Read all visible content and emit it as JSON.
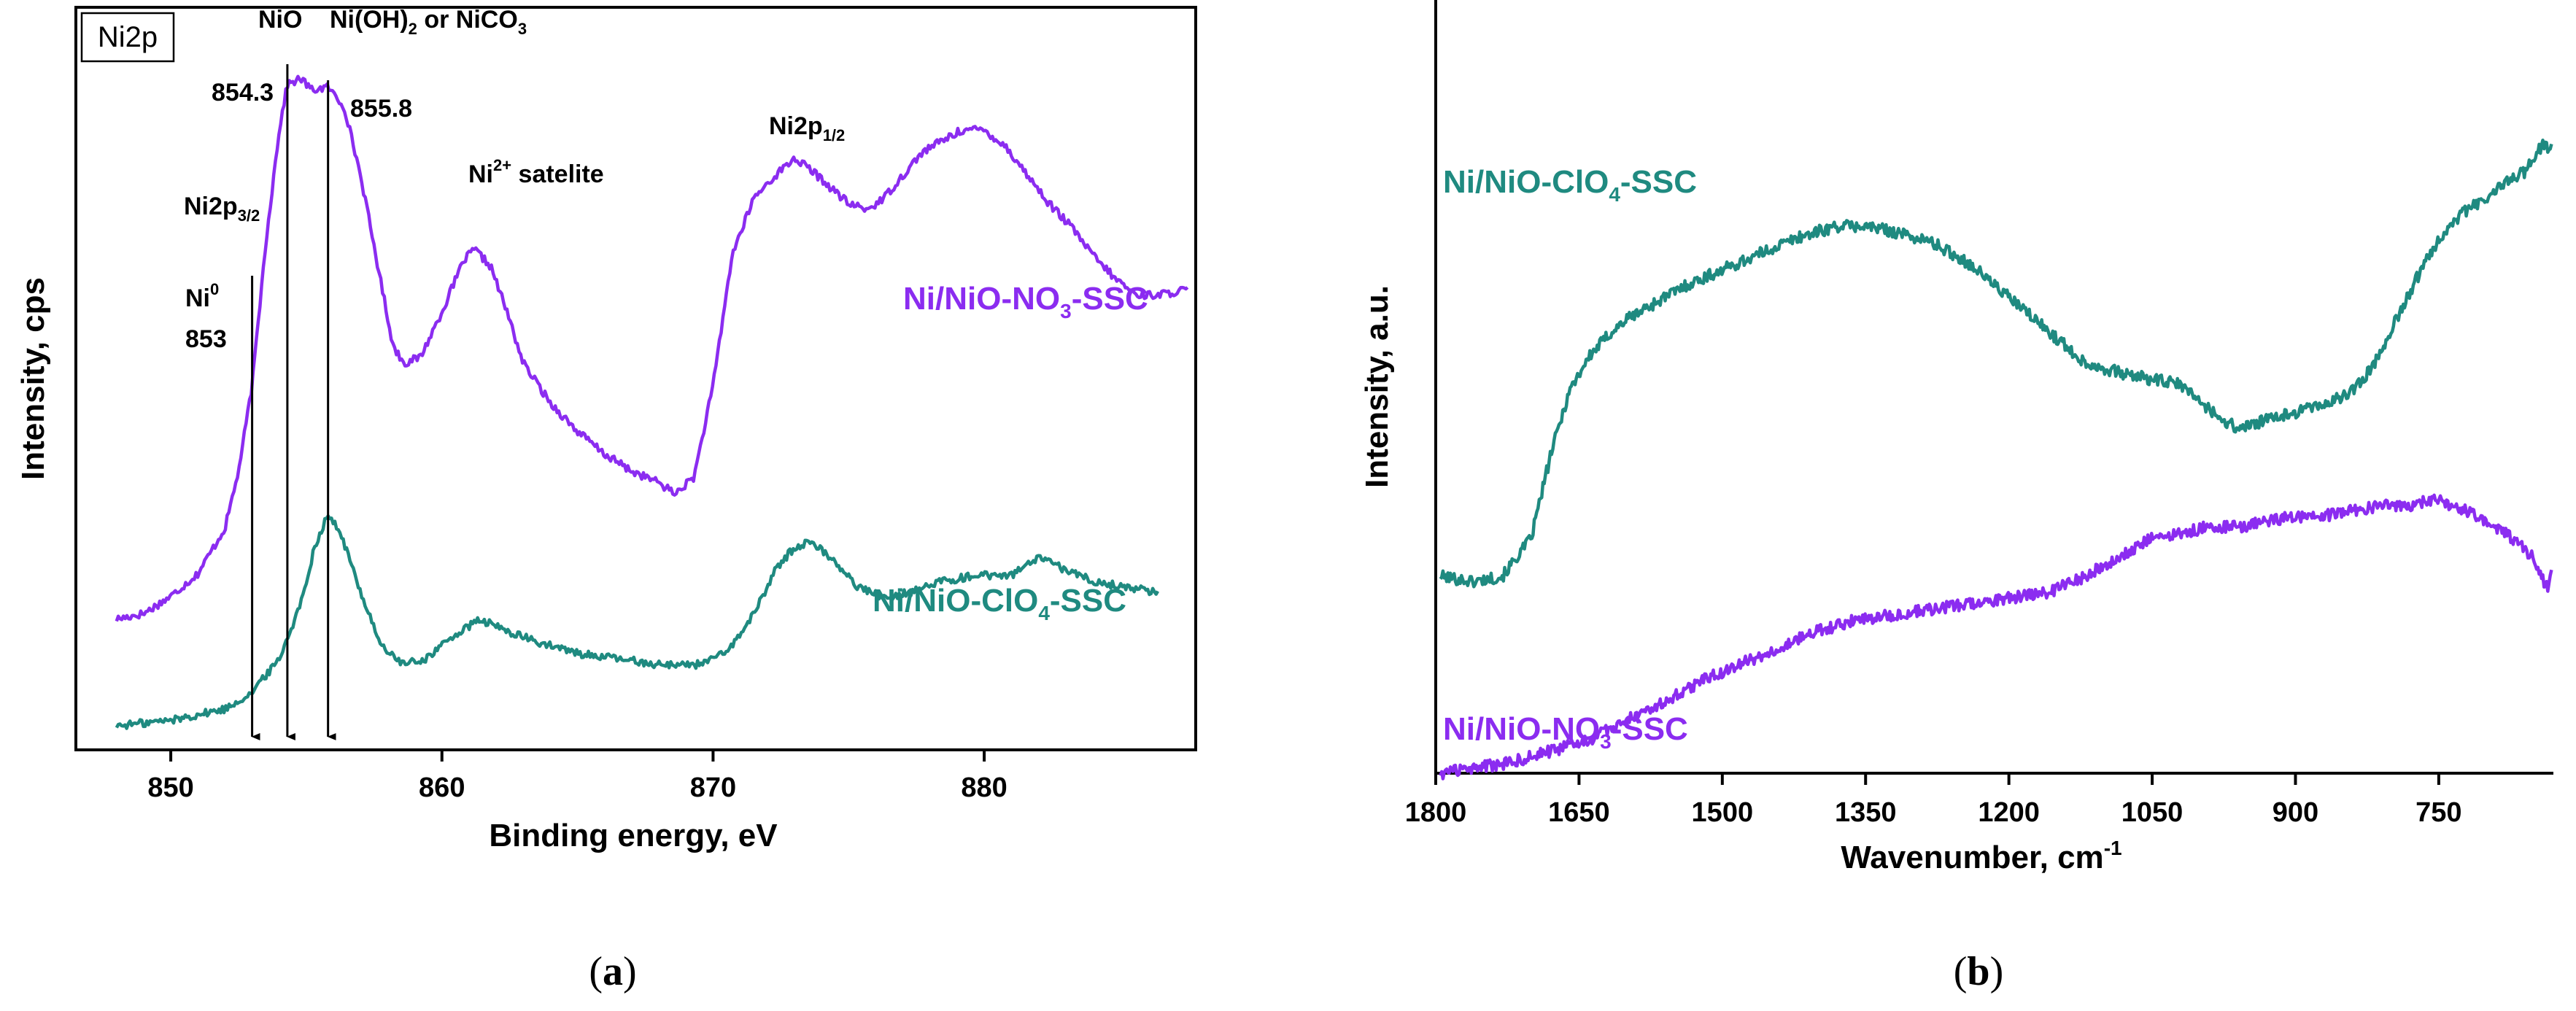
{
  "colors": {
    "purple": "#8b2cf0",
    "teal": "#1f8a80",
    "axis": "#000000"
  },
  "chart_data": [
    {
      "id": "a",
      "type": "line",
      "panel_caption": {
        "open": "(",
        "letter": "a",
        "close": ")"
      },
      "box_label": "Ni2p",
      "xlabel": "Binding energy, eV",
      "ylabel": "Intensity, cps",
      "xlim": [
        846.5,
        887.8
      ],
      "xticks": [
        850,
        860,
        870,
        880
      ],
      "xtick_labels": [
        "850",
        "860",
        "870",
        "880"
      ],
      "y_ticks_shown": false,
      "series": [
        {
          "name": "Ni/NiO-NO3-SSC",
          "label_main": "Ni/NiO-NO",
          "label_sub": "3",
          "label_end": "-SSC",
          "color": "#8b2cf0",
          "x": [
            848,
            849,
            850,
            851,
            852,
            852.5,
            853,
            853.5,
            854,
            854.3,
            854.8,
            855.2,
            855.8,
            856.4,
            857,
            857.6,
            858.2,
            858.6,
            859.2,
            860,
            860.8,
            861.2,
            861.8,
            862.4,
            863,
            864,
            865,
            866,
            867,
            868,
            868.6,
            869.3,
            870,
            870.7,
            871.5,
            872.3,
            873,
            873.6,
            874.3,
            875,
            875.7,
            876.3,
            877,
            877.7,
            878.4,
            879.2,
            880,
            880.8,
            881.6,
            882.4,
            883.2,
            884,
            884.8,
            885.6,
            886.5,
            887.5
          ],
          "values": [
            0.04,
            0.05,
            0.08,
            0.12,
            0.2,
            0.3,
            0.45,
            0.7,
            0.9,
            0.98,
            0.99,
            0.97,
            0.975,
            0.94,
            0.82,
            0.67,
            0.52,
            0.49,
            0.5,
            0.58,
            0.67,
            0.69,
            0.66,
            0.58,
            0.49,
            0.42,
            0.37,
            0.33,
            0.3,
            0.28,
            0.26,
            0.29,
            0.45,
            0.68,
            0.78,
            0.82,
            0.85,
            0.83,
            0.8,
            0.77,
            0.76,
            0.78,
            0.82,
            0.86,
            0.88,
            0.9,
            0.9,
            0.87,
            0.82,
            0.77,
            0.73,
            0.68,
            0.64,
            0.61,
            0.61,
            0.62
          ]
        },
        {
          "name": "Ni/NiO-ClO4-SSC",
          "label_main": "Ni/NiO-ClO",
          "label_sub": "4",
          "label_end": "-SSC",
          "color": "#1f8a80",
          "x": [
            848,
            850,
            852,
            853,
            854,
            854.8,
            855.3,
            855.8,
            856.3,
            857,
            857.8,
            858.6,
            859.4,
            860.4,
            861.4,
            862.4,
            863.5,
            865,
            866.5,
            868,
            869.4,
            870.5,
            871.5,
            872.3,
            873,
            873.6,
            874.4,
            875.3,
            876.3,
            877.3,
            878.5,
            879.8,
            881,
            882,
            883,
            884,
            885,
            886.4
          ],
          "values": [
            0.0,
            0.01,
            0.03,
            0.06,
            0.12,
            0.22,
            0.32,
            0.38,
            0.34,
            0.24,
            0.14,
            0.11,
            0.12,
            0.16,
            0.19,
            0.17,
            0.15,
            0.13,
            0.12,
            0.11,
            0.11,
            0.13,
            0.2,
            0.28,
            0.32,
            0.33,
            0.3,
            0.25,
            0.23,
            0.24,
            0.26,
            0.27,
            0.27,
            0.3,
            0.28,
            0.26,
            0.25,
            0.24
          ]
        }
      ],
      "annotations": [
        {
          "id": "ni2p32",
          "main": "Ni2p",
          "sub": "3/2"
        },
        {
          "id": "nio",
          "main": "NiO"
        },
        {
          "id": "nio-be",
          "main": "854.3"
        },
        {
          "id": "nioh2",
          "main": "Ni(OH)",
          "sub1": "2",
          "mid": " or NiCO",
          "sub2": "3"
        },
        {
          "id": "nioh2-be",
          "main": "855.8"
        },
        {
          "id": "ni0",
          "main": "Ni",
          "sup": "0"
        },
        {
          "id": "ni0-be",
          "main": "853"
        },
        {
          "id": "sat",
          "main": "Ni",
          "sup": "2+",
          "end": " satelite"
        },
        {
          "id": "ni2p12",
          "main": "Ni2p",
          "sub": "1/2"
        }
      ],
      "marker_lines": [
        853,
        854.3,
        855.8
      ]
    },
    {
      "id": "b",
      "type": "line",
      "panel_caption": {
        "open": "(",
        "letter": "b",
        "close": ")"
      },
      "xlabel_main": "Wavenumber, cm",
      "xlabel_sup": "-1",
      "ylabel": "Intensity, a.u.",
      "xlim": [
        1800,
        630
      ],
      "xticks": [
        1800,
        1650,
        1500,
        1350,
        1200,
        1050,
        900,
        750
      ],
      "xtick_labels": [
        "1800",
        "1650",
        "1500",
        "1350",
        "1200",
        "1050",
        "900",
        "750"
      ],
      "y_ticks_shown": false,
      "series": [
        {
          "name": "Ni/NiO-ClO4-SSC",
          "label_main": "Ni/NiO-ClO",
          "label_sub": "4",
          "label_end": "-SSC",
          "color": "#1f8a80",
          "x": [
            1795,
            1760,
            1730,
            1700,
            1680,
            1660,
            1640,
            1620,
            1600,
            1570,
            1540,
            1500,
            1460,
            1420,
            1380,
            1350,
            1320,
            1280,
            1240,
            1200,
            1160,
            1120,
            1080,
            1050,
            1020,
            1000,
            980,
            960,
            940,
            920,
            900,
            880,
            860,
            840,
            820,
            800,
            780,
            760,
            740,
            720,
            700,
            680,
            660,
            650,
            640,
            632
          ],
          "values": [
            0.08,
            0.07,
            0.08,
            0.15,
            0.3,
            0.42,
            0.48,
            0.52,
            0.55,
            0.58,
            0.61,
            0.64,
            0.67,
            0.7,
            0.72,
            0.72,
            0.71,
            0.69,
            0.65,
            0.59,
            0.53,
            0.47,
            0.45,
            0.44,
            0.43,
            0.4,
            0.37,
            0.35,
            0.36,
            0.37,
            0.38,
            0.39,
            0.4,
            0.42,
            0.46,
            0.53,
            0.6,
            0.67,
            0.72,
            0.75,
            0.77,
            0.8,
            0.82,
            0.85,
            0.87,
            0.86
          ]
        },
        {
          "name": "Ni/NiO-NO3-SSC",
          "label_main": "Ni/NiO-NO",
          "label_sub": "3",
          "label_end": "-SSC",
          "color": "#8b2cf0",
          "x": [
            1795,
            1760,
            1720,
            1680,
            1640,
            1600,
            1560,
            1520,
            1480,
            1440,
            1400,
            1360,
            1320,
            1280,
            1240,
            1200,
            1160,
            1120,
            1080,
            1050,
            1020,
            990,
            960,
            930,
            900,
            870,
            840,
            810,
            780,
            760,
            750,
            740,
            720,
            700,
            680,
            660,
            650,
            645,
            640,
            635,
            632
          ],
          "values": [
            -0.28,
            -0.27,
            -0.26,
            -0.24,
            -0.22,
            -0.18,
            -0.15,
            -0.11,
            -0.08,
            -0.05,
            -0.02,
            0.0,
            0.01,
            0.02,
            0.03,
            0.04,
            0.05,
            0.08,
            0.12,
            0.15,
            0.16,
            0.17,
            0.17,
            0.18,
            0.19,
            0.19,
            0.2,
            0.21,
            0.21,
            0.22,
            0.22,
            0.21,
            0.2,
            0.18,
            0.16,
            0.13,
            0.11,
            0.09,
            0.07,
            0.06,
            0.09
          ]
        }
      ]
    }
  ]
}
